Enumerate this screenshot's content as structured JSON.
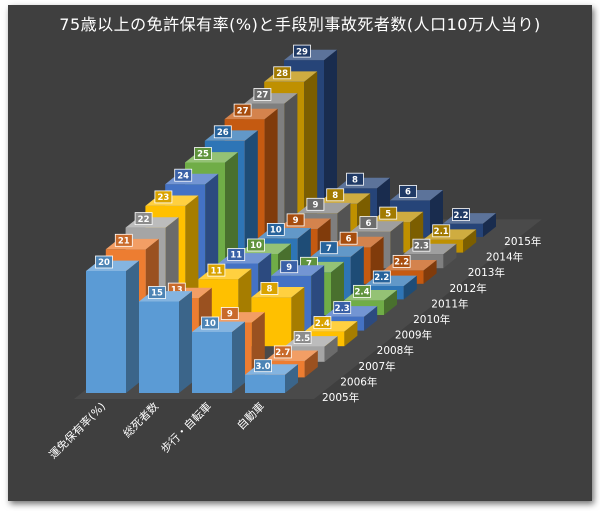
{
  "chart_data": {
    "type": "bar",
    "subtype": "3d-column",
    "title": "75歳以上の免許保有率(%)と手段別事故死者数(人口10万人当り)",
    "categories": [
      "運免保有率(%)",
      "総死者数",
      "歩行・自転車",
      "自動車"
    ],
    "series": [
      {
        "name": "2005年",
        "color": "#5b9bd5",
        "values": [
          20,
          15,
          10,
          3.0
        ]
      },
      {
        "name": "2006年",
        "color": "#ed7d31",
        "values": [
          21,
          13,
          9,
          2.7
        ]
      },
      {
        "name": "2007年",
        "color": "#a5a5a5",
        "values": [
          22,
          null,
          null,
          2.5
        ]
      },
      {
        "name": "2008年",
        "color": "#ffc000",
        "values": [
          23,
          11,
          8,
          2.4
        ]
      },
      {
        "name": "2009年",
        "color": "#4472c4",
        "values": [
          24,
          11,
          9,
          2.3
        ]
      },
      {
        "name": "2010年",
        "color": "#70ad47",
        "values": [
          25,
          10,
          7,
          2.4
        ]
      },
      {
        "name": "2011年",
        "color": "#2e75b6",
        "values": [
          26,
          10,
          7,
          2.2
        ]
      },
      {
        "name": "2012年",
        "color": "#c55a11",
        "values": [
          27,
          9,
          6,
          2.2
        ]
      },
      {
        "name": "2013年",
        "color": "#7f7f7f",
        "values": [
          27,
          9,
          6,
          2.3
        ]
      },
      {
        "name": "2014年",
        "color": "#bf9000",
        "values": [
          28,
          8,
          5,
          2.1
        ]
      },
      {
        "name": "2015年",
        "color": "#264478",
        "values": [
          29,
          8,
          6,
          2.2
        ]
      }
    ],
    "grid": false,
    "legend": "none",
    "depth_axis_labels": true,
    "data_labels": true
  }
}
